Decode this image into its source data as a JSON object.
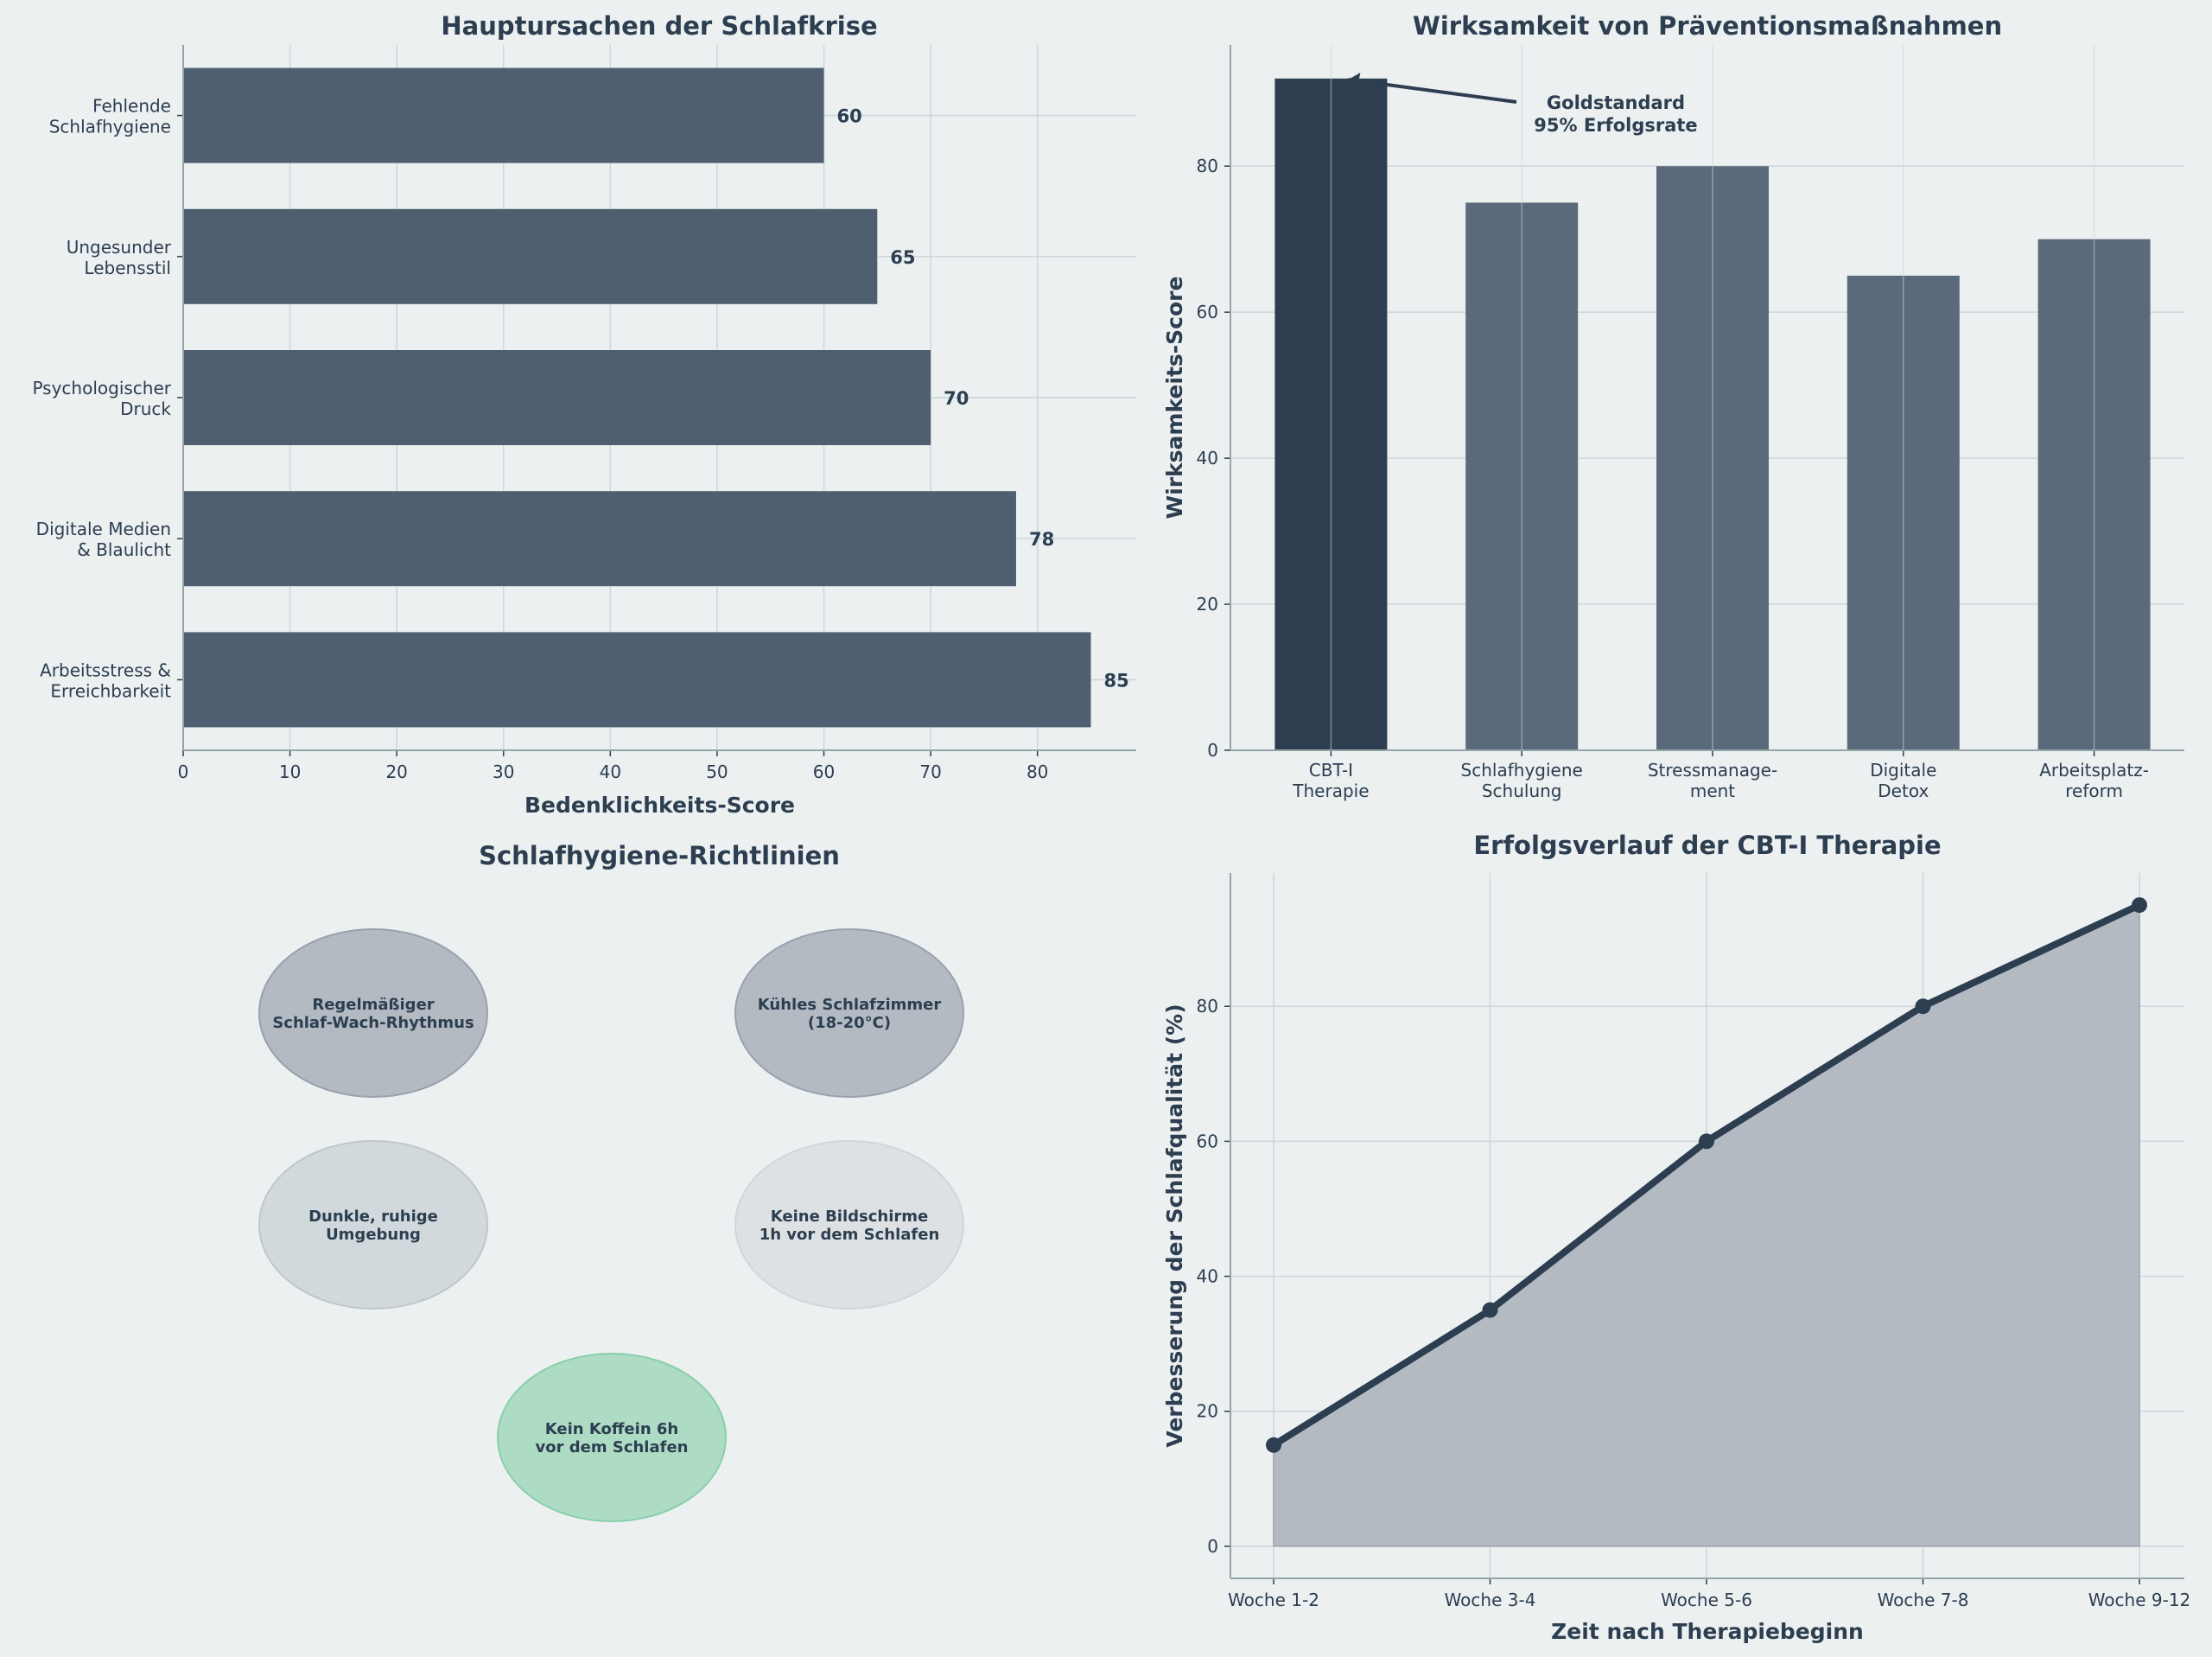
{
  "colors": {
    "background": "#ecf0f1",
    "primary": "#2c3e50",
    "bar": "#4f5f6f",
    "bar2": "#5a6a7a",
    "fill": "#b3bac2",
    "green": "#aedbc4"
  },
  "chart_data": [
    {
      "type": "bar",
      "orientation": "horizontal",
      "title": "Hauptursachen der Schlafkrise",
      "xlabel": "Bedenklichkeits-Score",
      "ylabel": "",
      "categories": [
        [
          "Arbeitsstress &",
          "Erreichbarkeit"
        ],
        [
          "Digitale Medien",
          "& Blaulicht"
        ],
        [
          "Psychologischer",
          "Druck"
        ],
        [
          "Ungesunder",
          "Lebensstil"
        ],
        [
          "Fehlende",
          "Schlafhygiene"
        ]
      ],
      "values": [
        85,
        78,
        70,
        65,
        60
      ],
      "xlim": [
        0,
        89.25
      ],
      "xticks": [
        0,
        10,
        20,
        30,
        40,
        50,
        60,
        70,
        80
      ],
      "grid": true
    },
    {
      "type": "bar",
      "title": "Wirksamkeit von Präventionsmaßnahmen",
      "xlabel": "",
      "ylabel": "Wirksamkeits-Score",
      "categories": [
        [
          "CBT-I",
          "Therapie"
        ],
        [
          "Schlafhygiene",
          "Schulung"
        ],
        [
          "Stressmanage-",
          "ment"
        ],
        [
          "Digitale",
          "Detox"
        ],
        [
          "Arbeitsplatz-",
          "reform"
        ]
      ],
      "values": [
        92,
        75,
        80,
        65,
        70
      ],
      "highlight_index": 0,
      "ylim": [
        0,
        96.6
      ],
      "yticks": [
        0,
        20,
        40,
        60,
        80
      ],
      "grid": true,
      "annotation": {
        "lines": [
          "Goldstandard",
          "95% Erfolgsrate"
        ],
        "target_index": 0
      }
    },
    {
      "type": "diagram",
      "title": "Schlafhygiene-Richtlinien",
      "items": [
        {
          "lines": [
            "Regelmäßiger",
            "Schlaf-Wach-Rhythmus"
          ],
          "fill": "#b3bac2",
          "stroke": "#97a2ad"
        },
        {
          "lines": [
            "Kühles Schlafzimmer",
            "(18-20°C)"
          ],
          "fill": "#b3bac2",
          "stroke": "#97a2ad"
        },
        {
          "lines": [
            "Dunkle, ruhige",
            "Umgebung"
          ],
          "fill": "#d1d9dc",
          "stroke": "#bec7cc"
        },
        {
          "lines": [
            "Keine Bildschirme",
            "1h vor dem Schlafen"
          ],
          "fill": "#dde1e3",
          "stroke": "#d0d6d9"
        },
        {
          "lines": [
            "Kein Koffein 6h",
            "vor dem Schlafen"
          ],
          "fill": "#aedbc4",
          "stroke": "#88cfa9"
        }
      ]
    },
    {
      "type": "area",
      "title": "Erfolgsverlauf der CBT-I Therapie",
      "xlabel": "Zeit nach Therapiebeginn",
      "ylabel": "Verbesserung der Schlafqualität (%)",
      "categories": [
        "Woche 1-2",
        "Woche 3-4",
        "Woche 5-6",
        "Woche 7-8",
        "Woche 9-12"
      ],
      "values": [
        15,
        35,
        60,
        80,
        95
      ],
      "ylim": [
        -4.75,
        99.75
      ],
      "yticks": [
        0,
        20,
        40,
        60,
        80
      ],
      "grid": true
    }
  ]
}
